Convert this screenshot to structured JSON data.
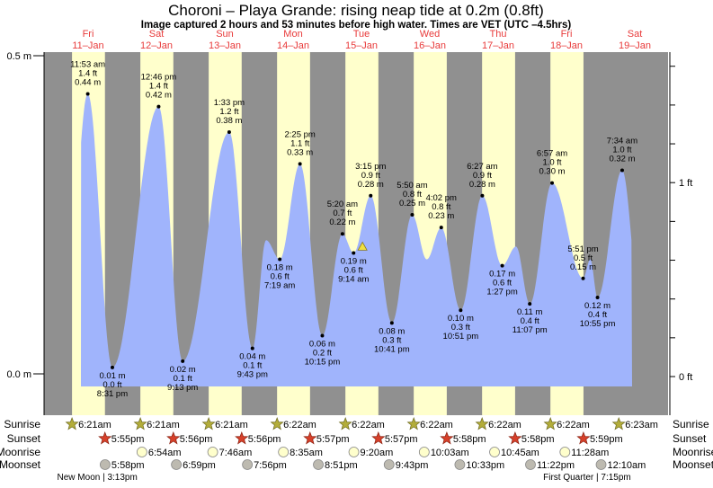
{
  "chart_data": {
    "type": "area",
    "title": "Choroni – Playa Grande: rising  neap tide at 0.2m (0.8ft)",
    "subtitle": "Image captured 2 hours and 53 minutes before high water. Times are VET (UTC –4.5hrs)",
    "month": "Jan",
    "days": [
      {
        "weekday": "Fri",
        "date": "11–Jan",
        "day": 11
      },
      {
        "weekday": "Sat",
        "date": "12–Jan",
        "day": 12
      },
      {
        "weekday": "Sun",
        "date": "13–Jan",
        "day": 13
      },
      {
        "weekday": "Mon",
        "date": "14–Jan",
        "day": 14
      },
      {
        "weekday": "Tue",
        "date": "15–Jan",
        "day": 15
      },
      {
        "weekday": "Wed",
        "date": "16–Jan",
        "day": 16
      },
      {
        "weekday": "Thu",
        "date": "17–Jan",
        "day": 17
      },
      {
        "weekday": "Fri",
        "date": "18–Jan",
        "day": 18
      },
      {
        "weekday": "Sat",
        "date": "19–Jan",
        "day": 19
      }
    ],
    "y_axis_left": {
      "unit": "m",
      "ticks": [
        {
          "value": 0.5,
          "label": "0.5 m"
        },
        {
          "value": 0.0,
          "label": "0.0 m"
        }
      ],
      "ylim": [
        -0.065,
        0.505
      ]
    },
    "y_axis_right": {
      "unit": "ft",
      "ticks": [
        {
          "value": 1,
          "label": "1 ft"
        },
        {
          "value": 0,
          "label": "0 ft"
        }
      ],
      "minor_step_ft": 0.2
    },
    "extremes": [
      {
        "type": "H",
        "day": 11,
        "time": "11:53 am",
        "ft": "1.4 ft",
        "m": "0.44 m",
        "value": 0.44
      },
      {
        "type": "L",
        "day": 11,
        "time": "8:31 pm",
        "ft": "0.0 ft",
        "m": "0.01 m",
        "value": 0.01
      },
      {
        "type": "H",
        "day": 12,
        "time": "12:46 pm",
        "ft": "1.4 ft",
        "m": "0.42 m",
        "value": 0.42
      },
      {
        "type": "L",
        "day": 12,
        "time": "9:13 pm",
        "ft": "0.1 ft",
        "m": "0.02 m",
        "value": 0.02
      },
      {
        "type": "H",
        "day": 13,
        "time": "1:33 pm",
        "ft": "1.2 ft",
        "m": "0.38 m",
        "value": 0.38
      },
      {
        "type": "L",
        "day": 13,
        "time": "9:43 pm",
        "ft": "0.1 ft",
        "m": "0.04 m",
        "value": 0.04
      },
      {
        "type": "L",
        "day": 14,
        "time": "7:19 am",
        "ft": "0.6 ft",
        "m": "0.18 m",
        "value": 0.18
      },
      {
        "type": "H",
        "day": 14,
        "time": "2:25 pm",
        "ft": "1.1 ft",
        "m": "0.33 m",
        "value": 0.33
      },
      {
        "type": "L",
        "day": 14,
        "time": "10:15 pm",
        "ft": "0.2 ft",
        "m": "0.06 m",
        "value": 0.06
      },
      {
        "type": "H",
        "day": 15,
        "time": "5:20 am",
        "ft": "0.7 ft",
        "m": "0.22 m",
        "value": 0.22
      },
      {
        "type": "L",
        "day": 15,
        "time": "9:14 am",
        "ft": "0.6 ft",
        "m": "0.19 m",
        "value": 0.19
      },
      {
        "type": "H",
        "day": 15,
        "time": "3:15 pm",
        "ft": "0.9 ft",
        "m": "0.28 m",
        "value": 0.28
      },
      {
        "type": "L",
        "day": 15,
        "time": "10:41 pm",
        "ft": "0.3 ft",
        "m": "0.08 m",
        "value": 0.08
      },
      {
        "type": "H",
        "day": 16,
        "time": "5:50 am",
        "ft": "0.8 ft",
        "m": "0.25 m",
        "value": 0.25
      },
      {
        "type": "H",
        "day": 16,
        "time": "4:02 pm",
        "ft": "0.8 ft",
        "m": "0.23 m",
        "value": 0.23
      },
      {
        "type": "L",
        "day": 16,
        "time": "10:51 pm",
        "ft": "0.3 ft",
        "m": "0.10 m",
        "value": 0.1
      },
      {
        "type": "H",
        "day": 17,
        "time": "6:27 am",
        "ft": "0.9 ft",
        "m": "0.28 m",
        "value": 0.28
      },
      {
        "type": "L",
        "day": 17,
        "time": "1:27 pm",
        "ft": "0.6 ft",
        "m": "0.17 m",
        "value": 0.17
      },
      {
        "type": "L",
        "day": 17,
        "time": "11:07 pm",
        "ft": "0.4 ft",
        "m": "0.11 m",
        "value": 0.11
      },
      {
        "type": "H",
        "day": 18,
        "time": "6:57 am",
        "ft": "1.0 ft",
        "m": "0.30 m",
        "value": 0.3
      },
      {
        "type": "L",
        "day": 18,
        "time": "5:51 pm",
        "ft": "0.5 ft",
        "m": "0.15 m",
        "value": 0.15
      },
      {
        "type": "L",
        "day": 18,
        "time": "10:55 pm",
        "ft": "0.4 ft",
        "m": "0.12 m",
        "value": 0.12
      },
      {
        "type": "H",
        "day": 19,
        "time": "7:34 am",
        "ft": "1.0 ft",
        "m": "0.32 m",
        "value": 0.32
      }
    ],
    "current": {
      "day": 15,
      "time": "12:22 pm",
      "value": 0.2,
      "state": "rising"
    },
    "sun_moon": {
      "labels": {
        "sunrise": "Sunrise",
        "sunset": "Sunset",
        "moonrise": "Moonrise",
        "moonset": "Moonset"
      },
      "sunrise": [
        {
          "day": 11,
          "time": "6:21am"
        },
        {
          "day": 12,
          "time": "6:21am"
        },
        {
          "day": 13,
          "time": "6:21am"
        },
        {
          "day": 14,
          "time": "6:22am"
        },
        {
          "day": 15,
          "time": "6:22am"
        },
        {
          "day": 16,
          "time": "6:22am"
        },
        {
          "day": 17,
          "time": "6:22am"
        },
        {
          "day": 18,
          "time": "6:22am"
        },
        {
          "day": 19,
          "time": "6:23am"
        }
      ],
      "sunset": [
        {
          "day": 11,
          "time": "5:55pm"
        },
        {
          "day": 12,
          "time": "5:56pm"
        },
        {
          "day": 13,
          "time": "5:56pm"
        },
        {
          "day": 14,
          "time": "5:57pm"
        },
        {
          "day": 15,
          "time": "5:57pm"
        },
        {
          "day": 16,
          "time": "5:58pm"
        },
        {
          "day": 17,
          "time": "5:58pm"
        },
        {
          "day": 18,
          "time": "5:59pm"
        }
      ],
      "moonrise": [
        {
          "day": 12,
          "time": "6:54am"
        },
        {
          "day": 13,
          "time": "7:46am"
        },
        {
          "day": 14,
          "time": "8:35am"
        },
        {
          "day": 15,
          "time": "9:20am"
        },
        {
          "day": 16,
          "time": "10:03am"
        },
        {
          "day": 17,
          "time": "10:45am"
        },
        {
          "day": 18,
          "time": "11:28am"
        }
      ],
      "moonset": [
        {
          "day": 11,
          "time": "5:58pm"
        },
        {
          "day": 12,
          "time": "6:59pm"
        },
        {
          "day": 13,
          "time": "7:56pm"
        },
        {
          "day": 14,
          "time": "8:51pm"
        },
        {
          "day": 15,
          "time": "9:43pm"
        },
        {
          "day": 16,
          "time": "10:33pm"
        },
        {
          "day": 17,
          "time": "11:22pm"
        },
        {
          "day": 19,
          "time": "12:10am"
        }
      ],
      "phases": [
        {
          "day": 11,
          "time": "3:13pm",
          "label": "New Moon | 3:13pm"
        },
        {
          "day": 18,
          "time": "7:15pm",
          "label": "First Quarter | 7:15pm"
        }
      ]
    },
    "colors": {
      "night": "#909090",
      "day": "#ffffcc",
      "water": "#a0b4fc",
      "day_label": "#e83a3a",
      "sunrise_icon": "#b3ad3a",
      "sunset_icon": "#d6402a",
      "moonrise_icon": "#ffffcc",
      "moonset_icon": "#bdbab0",
      "current_marker": "#f0e040"
    }
  }
}
